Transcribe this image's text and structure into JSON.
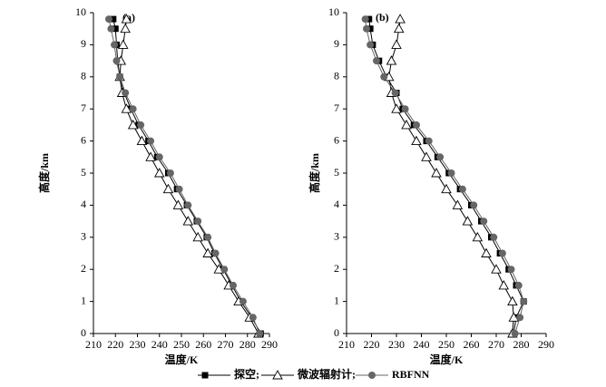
{
  "chart_data": [
    {
      "type": "line",
      "panel_label": "(a)",
      "xlabel": "温度/K",
      "ylabel": "高度/km",
      "y": [
        0,
        0.5,
        1,
        1.5,
        2,
        2.5,
        3,
        3.5,
        4,
        4.5,
        5,
        5.5,
        6,
        6.5,
        7,
        7.5,
        8,
        8.5,
        9,
        9.5,
        9.8
      ],
      "xlim": [
        210,
        290
      ],
      "xticks": [
        210,
        220,
        230,
        240,
        250,
        260,
        270,
        280,
        290
      ],
      "ylim": [
        0,
        10
      ],
      "yticks": [
        0,
        1,
        2,
        3,
        4,
        5,
        6,
        7,
        8,
        9,
        10
      ],
      "series": [
        {
          "name": "探空;",
          "color": "#000000",
          "marker": "square",
          "values": [
            286,
            282,
            277,
            273,
            269,
            265,
            261.5,
            257,
            252.5,
            248,
            244,
            239,
            235,
            230.5,
            227,
            224,
            222,
            221,
            220.5,
            220,
            219
          ]
        },
        {
          "name": "微波辐射计;",
          "color": "#000000",
          "marker": "triangle",
          "values": [
            285,
            281,
            276,
            271.5,
            267,
            262,
            257.5,
            253,
            248.5,
            244,
            240,
            236,
            232,
            228,
            225,
            223,
            222,
            222.5,
            223.5,
            224.5,
            225
          ]
        },
        {
          "name": "RBFNN",
          "color": "#666666",
          "marker": "circle",
          "values": [
            285.5,
            282.5,
            278,
            273.5,
            269.5,
            265.5,
            262,
            257.5,
            253,
            249,
            245,
            240,
            236,
            231.5,
            228,
            224.5,
            222,
            220.5,
            219.5,
            218,
            217
          ]
        }
      ]
    },
    {
      "type": "line",
      "panel_label": "(b)",
      "xlabel": "温度/K",
      "ylabel": "高度/km",
      "y": [
        0,
        0.5,
        1,
        1.5,
        2,
        2.5,
        3,
        3.5,
        4,
        4.5,
        5,
        5.5,
        6,
        6.5,
        7,
        7.5,
        8,
        8.5,
        9,
        9.5,
        9.8
      ],
      "xlim": [
        210,
        290
      ],
      "xticks": [
        210,
        220,
        230,
        240,
        250,
        260,
        270,
        280,
        290
      ],
      "ylim": [
        0,
        10
      ],
      "yticks": [
        0,
        1,
        2,
        3,
        4,
        5,
        6,
        7,
        8,
        9,
        10
      ],
      "series": [
        {
          "color": "#000000",
          "marker": "square",
          "values": [
            277,
            278,
            281,
            278,
            275,
            271.5,
            268,
            264,
            260,
            255.5,
            251,
            246.5,
            242,
            237,
            232.5,
            230,
            226,
            223,
            220.5,
            219.5,
            219
          ]
        },
        {
          "color": "#000000",
          "marker": "triangle",
          "values": [
            276.5,
            277,
            276.5,
            273,
            270,
            266,
            262.5,
            258.5,
            254.5,
            250,
            246,
            242,
            238,
            234,
            230,
            228,
            227,
            228,
            230,
            231,
            231.5
          ]
        },
        {
          "color": "#666666",
          "marker": "circle",
          "values": [
            277.5,
            279.5,
            281,
            279,
            276,
            272.5,
            269,
            265,
            261,
            256.5,
            252,
            247.5,
            243,
            238,
            233.5,
            229.5,
            225,
            222,
            219.5,
            218,
            217.5
          ]
        }
      ]
    }
  ]
}
